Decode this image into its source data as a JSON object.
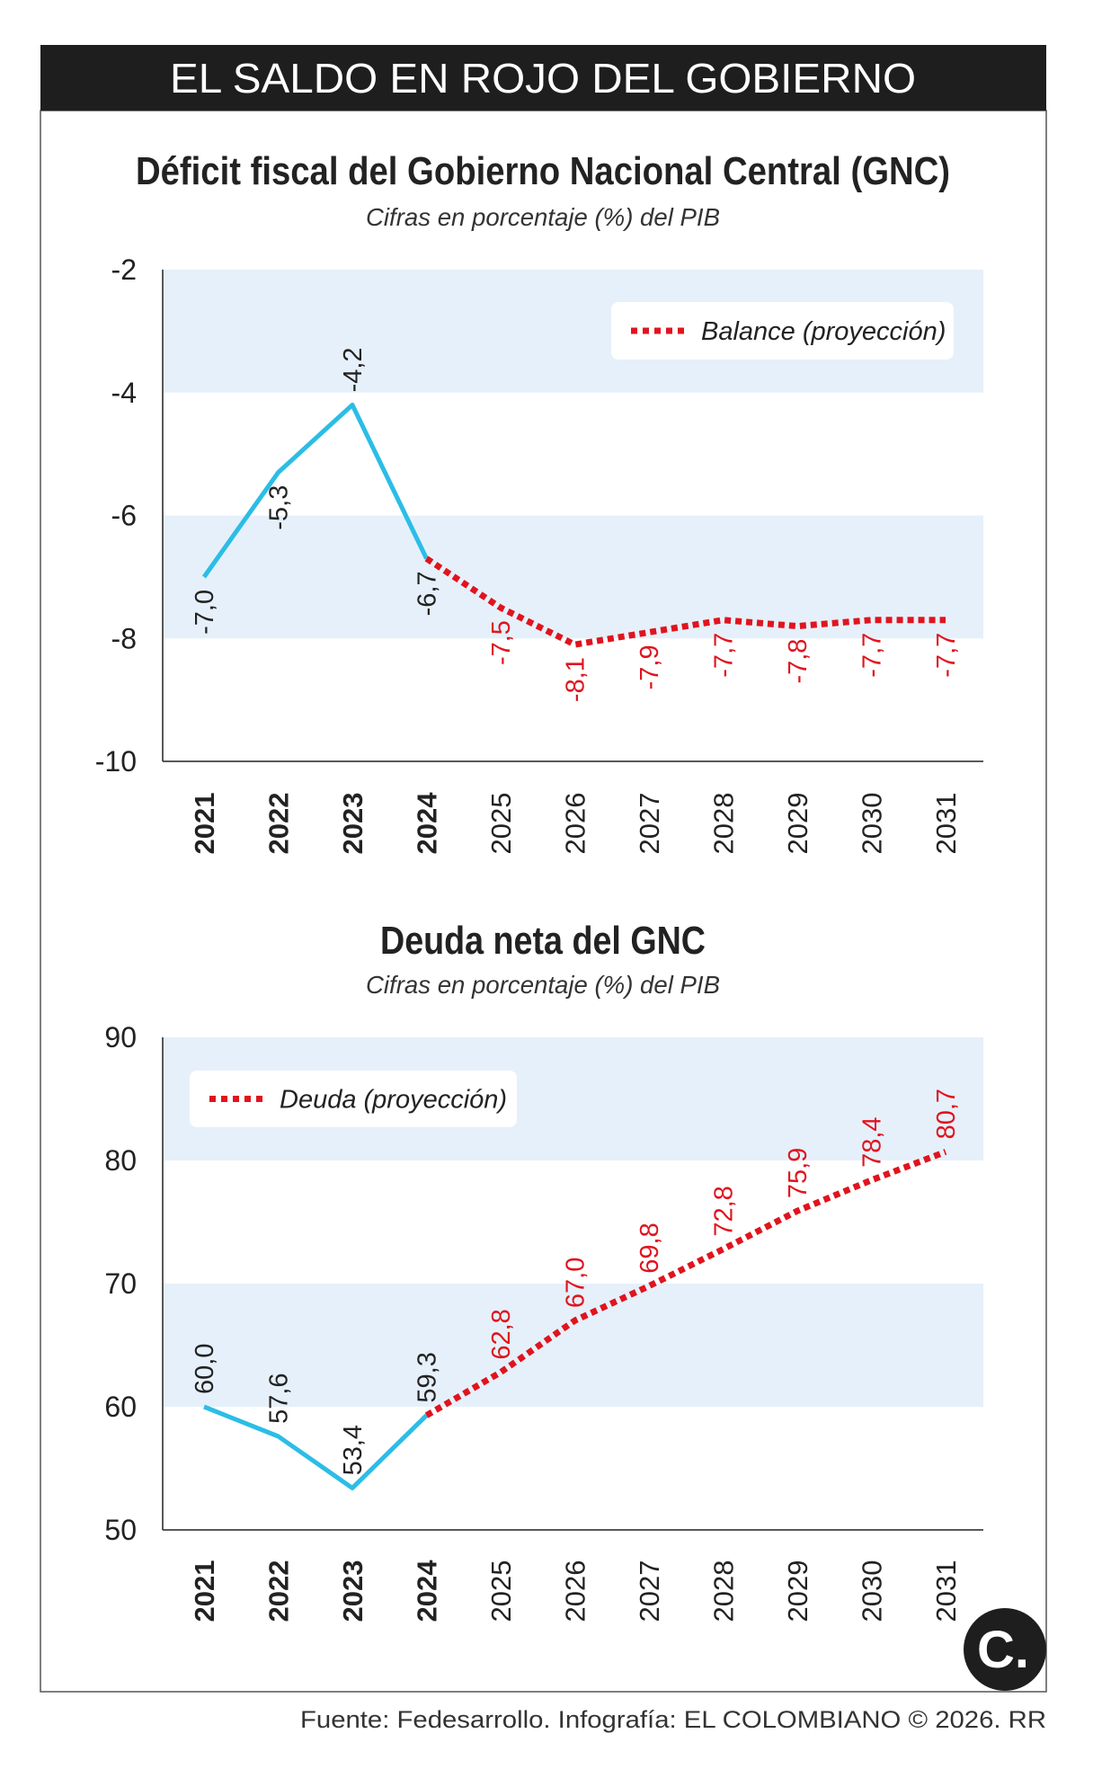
{
  "header": {
    "title": "EL SALDO EN ROJO DEL GOBIERNO"
  },
  "footer": {
    "source": "Fuente: Fedesarrollo. Infografía: EL COLOMBIANO © 2026. RR"
  },
  "logo": {
    "text": "C."
  },
  "colors": {
    "header_bg": "#1e1e1e",
    "band": "#e6f0fa",
    "actual": "#2bbde6",
    "projection": "#e0141e",
    "text": "#222222"
  },
  "chart_data": [
    {
      "type": "line",
      "title": "Déficit fiscal del Gobierno Nacional Central (GNC)",
      "subtitle": "Cifras en porcentaje (%) del PIB",
      "categories": [
        "2021",
        "2022",
        "2023",
        "2024",
        "2025",
        "2026",
        "2027",
        "2028",
        "2029",
        "2030",
        "2031"
      ],
      "bold_categories": [
        "2021",
        "2022",
        "2023",
        "2024"
      ],
      "ylim": [
        -10,
        -2
      ],
      "yticks": [
        "-2",
        "-4",
        "-6",
        "-8",
        "-10"
      ],
      "ytick_values": [
        -2,
        -4,
        -6,
        -8,
        -10
      ],
      "legend": {
        "label": "Balance (proyección)",
        "position": "top-right"
      },
      "series": [
        {
          "kind": "actual",
          "x": [
            "2021",
            "2022",
            "2023",
            "2024"
          ],
          "values": [
            -7.0,
            -5.3,
            -4.2,
            -6.7
          ],
          "labels": [
            "-7,0",
            "-5,3",
            "-4,2",
            "-6,7"
          ],
          "label_side": [
            "below",
            "below",
            "above",
            "below"
          ]
        },
        {
          "kind": "projection",
          "name": "Balance (proyección)",
          "x": [
            "2024",
            "2025",
            "2026",
            "2027",
            "2028",
            "2029",
            "2030",
            "2031"
          ],
          "values": [
            -6.7,
            -7.5,
            -8.1,
            -7.9,
            -7.7,
            -7.8,
            -7.7,
            -7.7
          ],
          "labels": [
            "",
            "-7,5",
            "-8,1",
            "-7,9",
            "-7,7",
            "-7,8",
            "-7,7",
            "-7,7"
          ],
          "label_side": [
            "",
            "below",
            "below",
            "below",
            "below",
            "below",
            "below",
            "below"
          ]
        }
      ]
    },
    {
      "type": "line",
      "title": "Deuda neta del GNC",
      "subtitle": "Cifras en porcentaje (%) del PIB",
      "categories": [
        "2021",
        "2022",
        "2023",
        "2024",
        "2025",
        "2026",
        "2027",
        "2028",
        "2029",
        "2030",
        "2031"
      ],
      "bold_categories": [
        "2021",
        "2022",
        "2023",
        "2024"
      ],
      "ylim": [
        50,
        90
      ],
      "yticks": [
        "90",
        "80",
        "70",
        "60",
        "50"
      ],
      "ytick_values": [
        90,
        80,
        70,
        60,
        50
      ],
      "legend": {
        "label": "Deuda (proyección)",
        "position": "top-left"
      },
      "series": [
        {
          "kind": "actual",
          "x": [
            "2021",
            "2022",
            "2023",
            "2024"
          ],
          "values": [
            60.0,
            57.6,
            53.4,
            59.3
          ],
          "labels": [
            "60,0",
            "57,6",
            "53,4",
            "59,3"
          ],
          "label_side": [
            "above",
            "above",
            "above",
            "above"
          ]
        },
        {
          "kind": "projection",
          "name": "Deuda (proyección)",
          "x": [
            "2024",
            "2025",
            "2026",
            "2027",
            "2028",
            "2029",
            "2030",
            "2031"
          ],
          "values": [
            59.3,
            62.8,
            67.0,
            69.8,
            72.8,
            75.9,
            78.4,
            80.7
          ],
          "labels": [
            "",
            "62,8",
            "67,0",
            "69,8",
            "72,8",
            "75,9",
            "78,4",
            "80,7"
          ],
          "label_side": [
            "",
            "above",
            "above",
            "above",
            "above",
            "above",
            "above",
            "above"
          ]
        }
      ]
    }
  ]
}
